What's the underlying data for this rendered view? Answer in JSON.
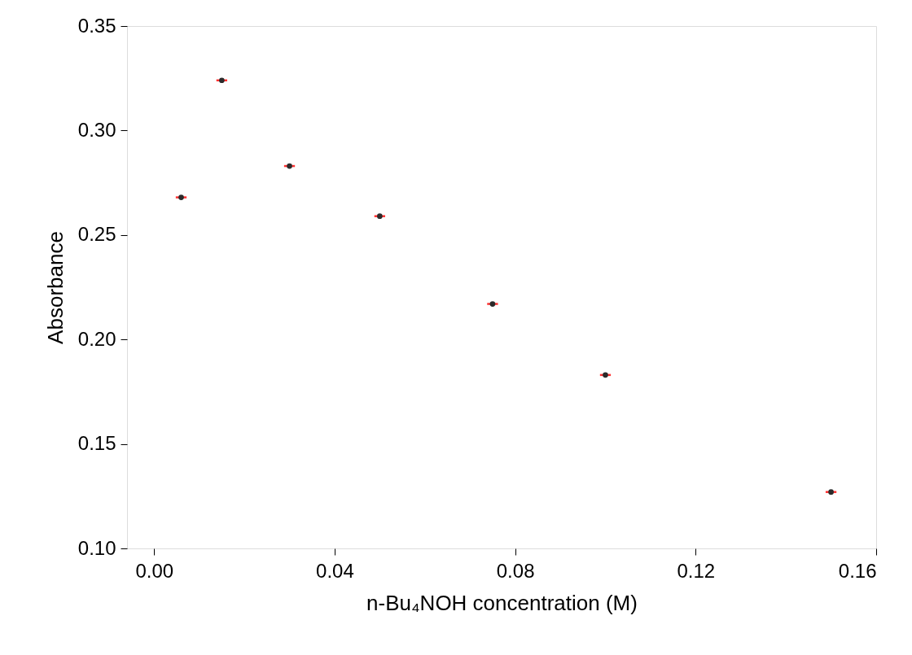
{
  "chart_data": {
    "type": "scatter",
    "xlabel": "n-Bu₄NOH concentration (M)",
    "ylabel": "Absorbance",
    "x": [
      0.006,
      0.015,
      0.03,
      0.05,
      0.075,
      0.1,
      0.15
    ],
    "series": [
      {
        "color": "#2b2b2b",
        "values": [
          0.268,
          0.324,
          0.283,
          0.259,
          0.217,
          0.183,
          0.127
        ],
        "xerrors": [
          0.0012,
          0.0012,
          0.0012,
          0.0012,
          0.0012,
          0.0012,
          0.0012
        ]
      }
    ],
    "xlim": [
      -0.006,
      0.16
    ],
    "ylim": [
      0.1,
      0.35
    ],
    "xticks": [
      {
        "value": 0,
        "label": "0.00"
      },
      0.04,
      0.08,
      0.12,
      {
        "value": 0.16,
        "label": "0.16"
      }
    ],
    "yticks": [
      {
        "value": 0.1,
        "label": "0.10"
      },
      0.15,
      {
        "value": 0.2,
        "label": "0.20"
      },
      0.25,
      {
        "value": 0.3,
        "label": "0.30"
      },
      0.35
    ],
    "marker": "circle",
    "grid": false
  }
}
